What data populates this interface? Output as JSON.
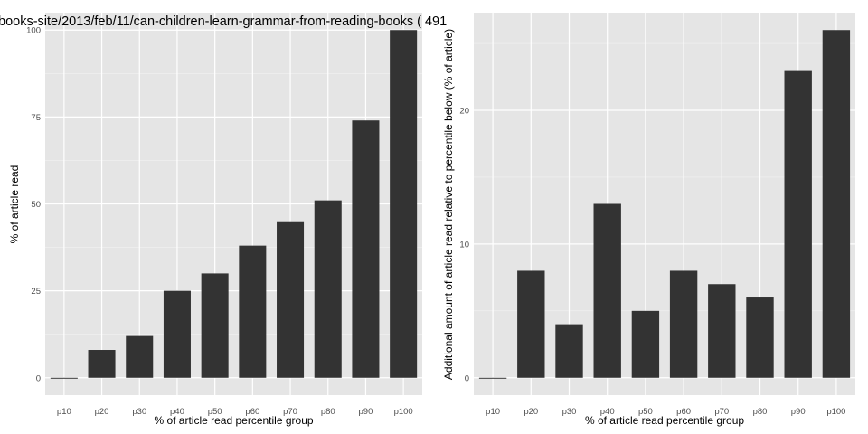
{
  "chart_data": [
    {
      "type": "bar",
      "title": "books-site/2013/feb/11/can-children-learn-grammar-from-reading-books ( 491",
      "xlabel": "% of article read percentile group",
      "ylabel": "% of article read",
      "categories": [
        "p10",
        "p20",
        "p30",
        "p40",
        "p50",
        "p60",
        "p70",
        "p80",
        "p90",
        "p100"
      ],
      "values": [
        0,
        8,
        12,
        25,
        30,
        38,
        45,
        51,
        74,
        100
      ],
      "ylim": [
        -5,
        105
      ],
      "yticks": [
        0,
        25,
        50,
        75,
        100
      ],
      "ytick_labels": [
        "0",
        "25",
        "50",
        "75",
        "100"
      ],
      "grid": true,
      "bar_color": "#333333",
      "panel_color": "#e5e5e5",
      "grid_color": "#ffffff"
    },
    {
      "type": "bar",
      "title": "",
      "xlabel": "% of article read percentile group",
      "ylabel": "Additional amount of article read relative to percentile below (% of article)",
      "categories": [
        "p10",
        "p20",
        "p30",
        "p40",
        "p50",
        "p60",
        "p70",
        "p80",
        "p90",
        "p100"
      ],
      "values": [
        0,
        8,
        4,
        13,
        5,
        8,
        7,
        6,
        23,
        26
      ],
      "ylim": [
        -1.3,
        27.3
      ],
      "yticks": [
        0,
        10,
        20
      ],
      "ytick_labels": [
        "0",
        "10",
        "20"
      ],
      "grid": true,
      "bar_color": "#333333",
      "panel_color": "#e5e5e5",
      "grid_color": "#ffffff"
    }
  ]
}
